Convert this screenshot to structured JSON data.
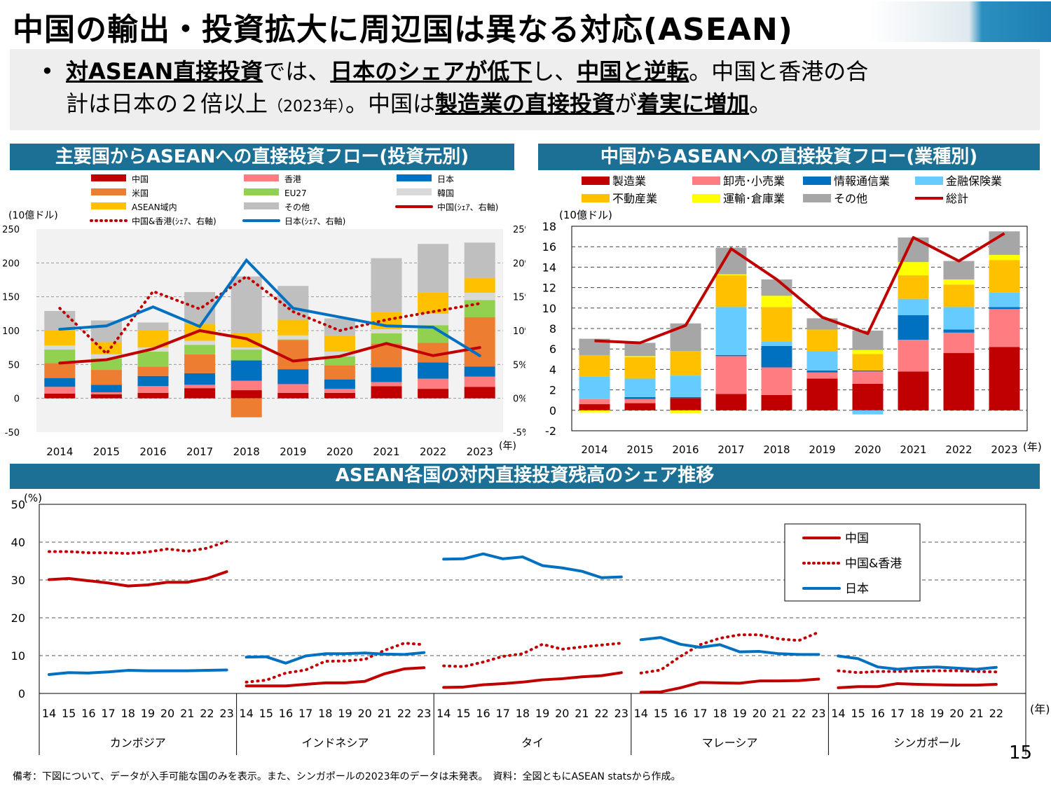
{
  "title": "中国の輸出・投資拡大に周辺国は異なる対応(ASEAN)",
  "summary": {
    "line1": [
      {
        "t": "対ASEAN直接投資",
        "s": "em"
      },
      {
        "t": "では、",
        "s": ""
      },
      {
        "t": "日本のシェアが低下",
        "s": "em"
      },
      {
        "t": "し、",
        "s": ""
      },
      {
        "t": "中国と逆転",
        "s": "em"
      },
      {
        "t": "。中国と香港の合",
        "s": ""
      }
    ],
    "line2": [
      {
        "t": "計は日本の２倍以上",
        "s": ""
      },
      {
        "t": "（2023年）",
        "s": "small"
      },
      {
        "t": "。中国は",
        "s": ""
      },
      {
        "t": "製造業の直接投資",
        "s": "em"
      },
      {
        "t": "が",
        "s": ""
      },
      {
        "t": "着実に増加",
        "s": "em"
      },
      {
        "t": "。",
        "s": ""
      }
    ]
  },
  "colors": {
    "band": "#1c7095",
    "china": "#c00000",
    "hk": "#ff7c80",
    "japan": "#0070c0",
    "us": "#ed7d31",
    "eu": "#92d050",
    "korea": "#d9d9d9",
    "asean": "#ffc000",
    "other": "#bfbfbf",
    "info": "#0070c0",
    "fin": "#66ccff",
    "realestate": "#ffc000",
    "transport": "#ffff00",
    "other2": "#a6a6a6"
  },
  "chart1": {
    "header": "主要国からASEANへの直接投資フロー(投資元別)",
    "unit": "(10億ドル)",
    "year_unit": "(年)",
    "legend": [
      "中国",
      "香港",
      "日本",
      "米国",
      "EU27",
      "韓国",
      "ASEAN域内",
      "その他",
      "中国(ｼｪｱ、右軸)",
      "中国&香港(ｼｪｱ、右軸)",
      "日本(ｼｪｱ、右軸)"
    ]
  },
  "chart2": {
    "header": "中国からASEANへの直接投資フロー(業種別)",
    "unit": "(10億ドル)",
    "year_unit": "(年)",
    "legend": [
      "製造業",
      "卸売･小売業",
      "情報通信業",
      "金融保険業",
      "不動産業",
      "運輸･倉庫業",
      "その他",
      "総計"
    ]
  },
  "chart3": {
    "header": "ASEAN各国の対内直接投資残高のシェア推移",
    "unit": "(%)",
    "year_unit": "(年)",
    "legend": [
      "中国",
      "中国&香港",
      "日本"
    ]
  },
  "chart_data": [
    {
      "type": "bar",
      "title": "主要国からASEANへの直接投資フロー(投資元別)",
      "ylabel": "(10億ドル)",
      "ylim": [
        -50,
        250
      ],
      "y2lim": [
        -5,
        25
      ],
      "categories": [
        "2014",
        "2015",
        "2016",
        "2017",
        "2018",
        "2019",
        "2020",
        "2021",
        "2022",
        "2023"
      ],
      "series": [
        {
          "name": "中国",
          "values": [
            7,
            6,
            8,
            15,
            12,
            8,
            8,
            18,
            14,
            17
          ]
        },
        {
          "name": "香港",
          "values": [
            10,
            3,
            10,
            5,
            14,
            13,
            6,
            6,
            15,
            15
          ]
        },
        {
          "name": "日本",
          "values": [
            13,
            11,
            15,
            17,
            30,
            22,
            14,
            22,
            24,
            15
          ]
        },
        {
          "name": "米国",
          "values": [
            22,
            22,
            14,
            28,
            -28,
            43,
            21,
            35,
            29,
            73
          ]
        },
        {
          "name": "EU27",
          "values": [
            20,
            17,
            22,
            14,
            16,
            1,
            13,
            15,
            26,
            25
          ]
        },
        {
          "name": "韓国",
          "values": [
            6,
            6,
            6,
            6,
            3,
            6,
            7,
            6,
            17,
            11
          ]
        },
        {
          "name": "ASEAN域内",
          "values": [
            23,
            18,
            25,
            25,
            22,
            23,
            24,
            25,
            31,
            22
          ]
        },
        {
          "name": "その他",
          "values": [
            28,
            32,
            12,
            47,
            83,
            50,
            25,
            80,
            72,
            52
          ]
        }
      ],
      "lines": [
        {
          "name": "中国(ｼｪｱ、右軸)",
          "values": [
            5.2,
            5.7,
            7.3,
            10.0,
            8.8,
            5.5,
            6.2,
            8.1,
            6.3,
            7.5
          ]
        },
        {
          "name": "中国&香港(ｼｪｱ、右軸)",
          "values": [
            13.3,
            6.6,
            15.8,
            13.2,
            18.0,
            12.8,
            10.0,
            11.6,
            12.8,
            14.0
          ]
        },
        {
          "name": "日本(ｼｪｱ、右軸)",
          "values": [
            10.2,
            10.7,
            13.5,
            10.6,
            20.4,
            13.3,
            12.0,
            10.7,
            10.5,
            6.3
          ]
        }
      ],
      "yticks": [
        -50,
        0,
        50,
        100,
        150,
        200,
        250
      ],
      "y2ticks": [
        "-5%",
        "0%",
        "5%",
        "10%",
        "15%",
        "20%",
        "25%"
      ]
    },
    {
      "type": "bar",
      "title": "中国からASEANへの直接投資フロー(業種別)",
      "ylabel": "(10億ドル)",
      "ylim": [
        -2,
        18
      ],
      "categories": [
        "2014",
        "2015",
        "2016",
        "2017",
        "2018",
        "2019",
        "2020",
        "2021",
        "2022",
        "2023"
      ],
      "series": [
        {
          "name": "製造業",
          "values": [
            0.6,
            0.7,
            1.2,
            1.6,
            1.5,
            3.1,
            2.6,
            3.8,
            5.6,
            6.2
          ]
        },
        {
          "name": "卸売･小売業",
          "values": [
            0.5,
            0.4,
            0,
            3.7,
            2.7,
            0.6,
            1.2,
            3.1,
            2.0,
            3.7
          ]
        },
        {
          "name": "情報通信業",
          "values": [
            0,
            0.2,
            0.1,
            0.1,
            2.1,
            0.2,
            0.1,
            2.4,
            0.3,
            0.2
          ]
        },
        {
          "name": "金融保険業",
          "values": [
            2.2,
            1.8,
            2.1,
            4.7,
            0.4,
            1.9,
            0,
            1.6,
            2.2,
            1.4
          ]
        },
        {
          "name": "不動産業",
          "values": [
            2.1,
            2.1,
            2.4,
            3.1,
            3.4,
            2.1,
            1.6,
            2.3,
            2.2,
            3.2
          ]
        },
        {
          "name": "運輸･倉庫業",
          "values": [
            -0.2,
            0.1,
            -0.3,
            0.1,
            1.1,
            0,
            0.4,
            1.3,
            0.5,
            0.5
          ]
        },
        {
          "name": "その他",
          "values": [
            1.6,
            1.3,
            2.7,
            2.6,
            1.6,
            1.1,
            1.9,
            2.4,
            1.8,
            2.3
          ]
        },
        {
          "name": "_neg",
          "values": [
            0,
            0,
            0,
            0,
            0,
            0,
            -0.4,
            0,
            0,
            0
          ]
        }
      ],
      "lines": [
        {
          "name": "総計",
          "values": [
            6.8,
            6.6,
            8.3,
            15.8,
            12.8,
            9.1,
            7.5,
            16.9,
            14.6,
            17.3
          ]
        }
      ],
      "yticks": [
        -2,
        0,
        2,
        4,
        6,
        8,
        10,
        12,
        14,
        16,
        18
      ]
    },
    {
      "type": "line",
      "title": "ASEAN各国の対内直接投資残高のシェア推移",
      "ylabel": "(%)",
      "ylim": [
        0,
        50
      ],
      "yticks": [
        0,
        10,
        20,
        30,
        40,
        50
      ],
      "groups": [
        {
          "name": "カンボジア",
          "years": [
            "14",
            "15",
            "16",
            "17",
            "18",
            "19",
            "20",
            "21",
            "22",
            "23"
          ],
          "china": [
            30.1,
            30.4,
            29.8,
            29.2,
            28.4,
            28.7,
            29.4,
            29.4,
            30.4,
            32.2
          ],
          "chinahk": [
            37.5,
            37.5,
            37.2,
            37.2,
            37.0,
            37.4,
            38.2,
            37.6,
            38.4,
            40.2
          ],
          "japan": [
            5.0,
            5.5,
            5.4,
            5.7,
            6.1,
            6.0,
            6.0,
            6.0,
            6.1,
            6.2
          ]
        },
        {
          "name": "インドネシア",
          "years": [
            "14",
            "15",
            "16",
            "17",
            "18",
            "19",
            "20",
            "21",
            "22",
            "23"
          ],
          "china": [
            2.0,
            2.0,
            2.0,
            2.4,
            2.8,
            2.8,
            3.2,
            5.2,
            6.5,
            6.8
          ],
          "chinahk": [
            3.0,
            3.5,
            5.4,
            6.2,
            8.5,
            8.6,
            9.0,
            11.4,
            13.3,
            12.9
          ],
          "japan": [
            9.6,
            9.7,
            8.0,
            9.9,
            10.5,
            10.5,
            10.7,
            10.4,
            10.3,
            10.8
          ]
        },
        {
          "name": "タイ",
          "years": [
            "14",
            "15",
            "16",
            "17",
            "18",
            "19",
            "20",
            "21",
            "22",
            "23"
          ],
          "china": [
            1.6,
            1.7,
            2.3,
            2.6,
            3.0,
            3.6,
            3.9,
            4.4,
            4.7,
            5.5
          ],
          "chinahk": [
            7.3,
            7.1,
            8.3,
            9.8,
            10.5,
            13.0,
            11.7,
            12.3,
            12.8,
            13.3
          ],
          "japan": [
            35.5,
            35.6,
            36.9,
            35.6,
            36.1,
            33.8,
            33.2,
            32.3,
            30.6,
            30.8
          ]
        },
        {
          "name": "マレーシア",
          "years": [
            "14",
            "15",
            "16",
            "17",
            "18",
            "19",
            "20",
            "21",
            "22",
            "23"
          ],
          "china": [
            0.3,
            0.4,
            1.5,
            2.9,
            2.8,
            2.7,
            3.3,
            3.3,
            3.4,
            3.8
          ],
          "chinahk": [
            5.4,
            6.2,
            9.8,
            12.9,
            14.6,
            15.5,
            15.5,
            14.4,
            14.0,
            16.2
          ],
          "japan": [
            14.2,
            14.8,
            13.0,
            12.2,
            12.9,
            11.0,
            11.1,
            10.5,
            10.3,
            10.3
          ]
        },
        {
          "name": "シンガポール",
          "years": [
            "14",
            "15",
            "16",
            "17",
            "18",
            "19",
            "20",
            "21",
            "22"
          ],
          "china": [
            1.5,
            1.8,
            1.8,
            2.6,
            2.4,
            2.3,
            2.2,
            2.2,
            2.4
          ],
          "chinahk": [
            6.0,
            5.5,
            5.8,
            5.8,
            5.9,
            6.0,
            6.0,
            5.8,
            5.7
          ],
          "japan": [
            9.9,
            9.2,
            7.0,
            6.4,
            6.8,
            7.0,
            6.7,
            6.4,
            6.9
          ]
        }
      ]
    }
  ],
  "footnote": "備考：下図について、データが入手可能な国のみを表示。また、シンガポールの2023年のデータは未発表。　資料：全図ともにASEAN statsから作成。",
  "page_number": "15"
}
